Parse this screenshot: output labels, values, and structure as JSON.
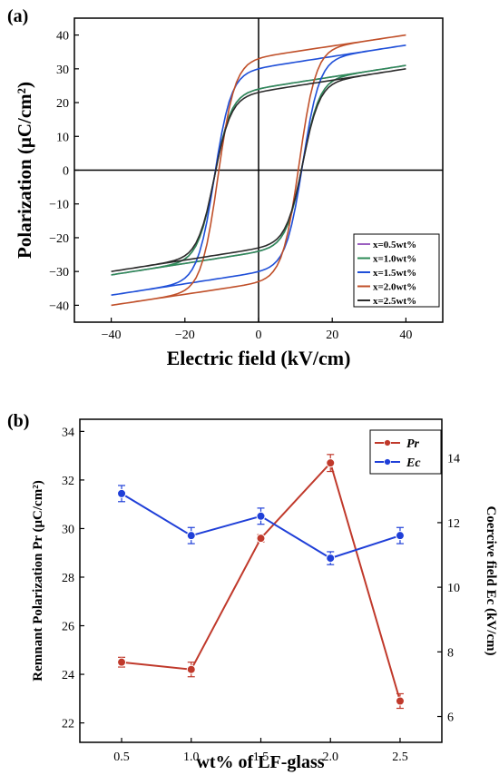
{
  "chart_data": [
    {
      "panel_label": "(a)",
      "type": "line",
      "title": "",
      "xlabel": "Electric field (kV/cm)",
      "ylabel": "Polarization (μC/cm²)",
      "xlim": [
        -50,
        50
      ],
      "ylim": [
        -45,
        45
      ],
      "xticks": [
        -40,
        -20,
        0,
        20,
        40
      ],
      "yticks": [
        -40,
        -30,
        -20,
        -10,
        0,
        10,
        20,
        30,
        40
      ],
      "grid": false,
      "legend_position": "bottom-right",
      "series": [
        {
          "name": "x=0.5wt%",
          "color": "#9b5fc0",
          "Pmax": 31,
          "Pr": 24,
          "Ec": 12
        },
        {
          "name": "x=1.0wt%",
          "color": "#2e8b57",
          "Pmax": 31,
          "Pr": 24,
          "Ec": 12
        },
        {
          "name": "x=1.5wt%",
          "color": "#1f4fd8",
          "Pmax": 37,
          "Pr": 30,
          "Ec": 12
        },
        {
          "name": "x=2.0wt%",
          "color": "#c0502a",
          "Pmax": 40,
          "Pr": 33,
          "Ec": 11
        },
        {
          "name": "x=2.5wt%",
          "color": "#2b2b2b",
          "Pmax": 30,
          "Pr": 23,
          "Ec": 12
        }
      ]
    },
    {
      "panel_label": "(b)",
      "type": "line",
      "title": "",
      "xlabel": "wt% of LF-glass",
      "ylabel": "Remnant Polarization Pr (μC/cm²)",
      "y2label": "Coercive field Ec (kV/cm)",
      "categories": [
        0.5,
        1.0,
        1.5,
        2.0,
        2.5
      ],
      "xlim": [
        0.2,
        2.8
      ],
      "ylim": [
        21.2,
        34.5
      ],
      "y2lim": [
        5.2,
        15.2
      ],
      "yticks": [
        22,
        24,
        26,
        28,
        30,
        32,
        34
      ],
      "y2ticks": [
        6,
        8,
        10,
        12,
        14
      ],
      "xticks": [
        "0.5",
        "1.0",
        "1.5",
        "2.0",
        "2.5"
      ],
      "grid": false,
      "legend_position": "top-right",
      "series": [
        {
          "name": "Pr",
          "axis": "left",
          "color": "#c0392b",
          "values": [
            24.5,
            24.2,
            29.6,
            32.7,
            22.9
          ],
          "errors": [
            0.2,
            0.3,
            0.15,
            0.35,
            0.3
          ]
        },
        {
          "name": "Ec",
          "axis": "right",
          "color": "#1f3fd8",
          "values": [
            12.9,
            11.6,
            12.2,
            10.9,
            11.6
          ],
          "errors": [
            0.25,
            0.25,
            0.25,
            0.2,
            0.25
          ]
        }
      ]
    }
  ]
}
